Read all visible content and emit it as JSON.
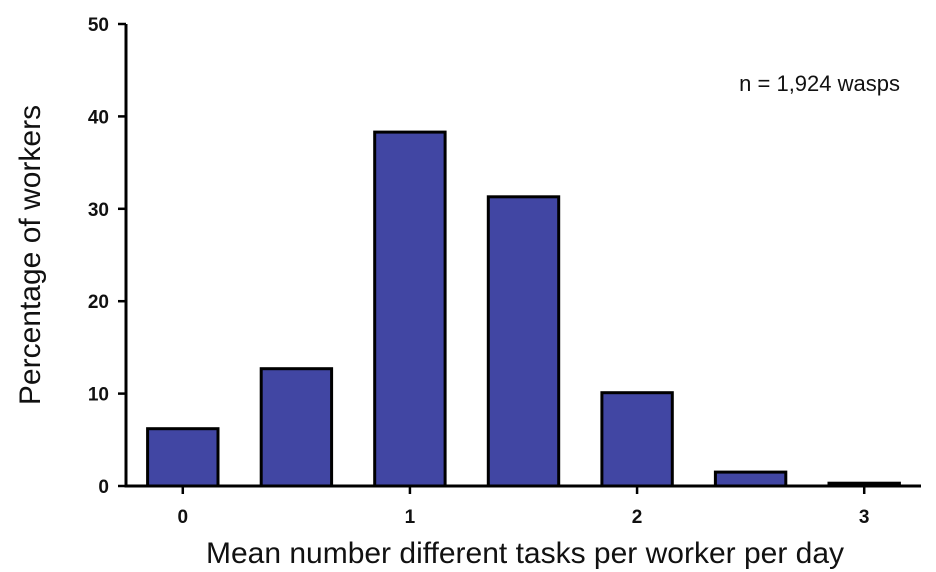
{
  "chart_data": {
    "type": "bar",
    "title": "",
    "xlabel": "Mean number different tasks per worker per day",
    "ylabel": "Percentage of workers",
    "annotation": "n = 1,924 wasps",
    "x_ticks": [
      "0",
      "1",
      "2",
      "3"
    ],
    "y_ticks": [
      "0",
      "10",
      "20",
      "30",
      "40",
      "50"
    ],
    "ylim": [
      0,
      50
    ],
    "xlim": [
      -0.25,
      3.25
    ],
    "bin_width": 0.5,
    "bins": [
      0,
      0.5,
      1,
      1.5,
      2,
      2.5,
      3
    ],
    "values": [
      6.2,
      12.7,
      38.3,
      31.3,
      10.1,
      1.5,
      0.3
    ],
    "bar_color": "#4146a3",
    "bar_edge_color": "#000000",
    "grid": false,
    "legend": "none"
  }
}
